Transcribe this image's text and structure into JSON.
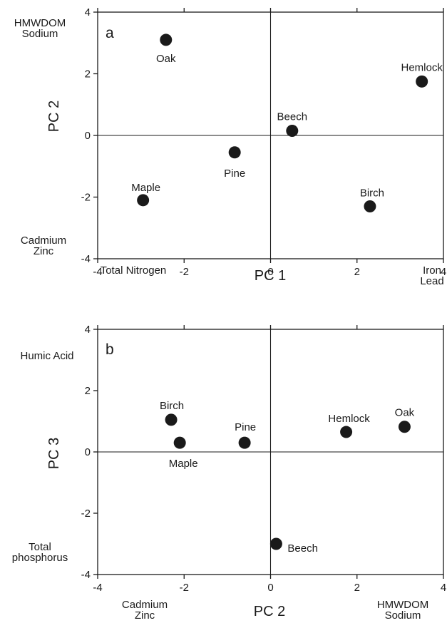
{
  "chart_data": [
    {
      "type": "scatter",
      "panel_label": "a",
      "xlabel": "PC 1",
      "ylabel": "PC 2",
      "xlim": [
        -4,
        4
      ],
      "ylim": [
        -4,
        4
      ],
      "xticks": [
        -4,
        -2,
        0,
        2,
        4
      ],
      "yticks": [
        -4,
        -2,
        0,
        2,
        4
      ],
      "zero_lines": true,
      "points": [
        {
          "label": "Oak",
          "x": -2.42,
          "y": 3.1
        },
        {
          "label": "Hemlock",
          "x": 3.5,
          "y": 1.75
        },
        {
          "label": "Beech",
          "x": 0.5,
          "y": 0.15
        },
        {
          "label": "Pine",
          "x": -0.83,
          "y": -0.55
        },
        {
          "label": "Maple",
          "x": -2.95,
          "y": -2.1
        },
        {
          "label": "Birch",
          "x": 2.3,
          "y": -2.3
        }
      ],
      "axis_annotations": {
        "y_positive": "HMWDOM\nSodium",
        "y_negative": "Cadmium\nZinc",
        "x_negative": "Total Nitrogen",
        "x_positive": "Iron\nLead"
      }
    },
    {
      "type": "scatter",
      "panel_label": "b",
      "xlabel": "PC 2",
      "ylabel": "PC 3",
      "xlim": [
        -4,
        4
      ],
      "ylim": [
        -4,
        4
      ],
      "xticks": [
        -4,
        -2,
        0,
        2,
        4
      ],
      "yticks": [
        -4,
        -2,
        0,
        2,
        4
      ],
      "zero_lines": true,
      "points": [
        {
          "label": "Birch",
          "x": -2.3,
          "y": 1.05
        },
        {
          "label": "Maple",
          "x": -2.1,
          "y": 0.3
        },
        {
          "label": "Pine",
          "x": -0.6,
          "y": 0.3
        },
        {
          "label": "Hemlock",
          "x": 1.75,
          "y": 0.65
        },
        {
          "label": "Oak",
          "x": 3.1,
          "y": 0.82
        },
        {
          "label": "Beech",
          "x": 0.13,
          "y": -3.0
        }
      ],
      "axis_annotations": {
        "y_positive": "Humic Acid",
        "y_negative": "Total\nphosphorus",
        "x_negative": "Cadmium\nZinc",
        "x_positive": "HMWDOM\nSodium"
      }
    }
  ],
  "colors": {
    "marker": "#1a1a1a",
    "axis": "#1a1a1a"
  }
}
